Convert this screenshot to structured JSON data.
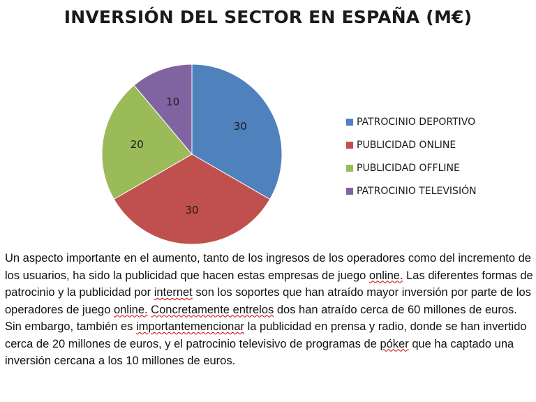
{
  "chart_data": {
    "type": "pie",
    "title": "INVERSIÓN DEL SECTOR EN ESPAÑA (M€)",
    "categories": [
      "PATROCINIO DEPORTIVO",
      "PUBLICIDAD ONLINE",
      "PUBLICIDAD OFFLINE",
      "PATROCINIO TELEVISIÓN"
    ],
    "values": [
      30,
      30,
      20,
      10
    ],
    "colors": [
      "#4f81bd",
      "#c0504d",
      "#9bbb59",
      "#8064a2"
    ],
    "legend_position": "right"
  },
  "description": {
    "segments": [
      {
        "text": "Un aspecto importante en el aumento, tanto de los ingresos de los operadores como del incremento de los usuarios, ha sido la publicidad que hacen estas empresas de juego "
      },
      {
        "text": "online.",
        "spell": true
      },
      {
        "text": " Las diferentes formas de patrocinio y la publicidad por "
      },
      {
        "text": "internet",
        "spell": true
      },
      {
        "text": " son los soportes que han atraído mayor inversión por parte de los operadores de juego "
      },
      {
        "text": "online.",
        "spell": true
      },
      {
        "text": " "
      },
      {
        "text": "Concretamente entrelos",
        "spell": true
      },
      {
        "text": " dos han atraído cerca de 60 millones de euros. Sin embargo, también es "
      },
      {
        "text": "importantemencionar",
        "spell": true
      },
      {
        "text": " la publicidad en prensa y radio, donde se han invertido cerca de 20 millones de euros, y el patrocinio televisivo de programas de "
      },
      {
        "text": "póker",
        "spell": true
      },
      {
        "text": " que ha captado una inversión cercana a los 10 millones de euros."
      }
    ]
  }
}
